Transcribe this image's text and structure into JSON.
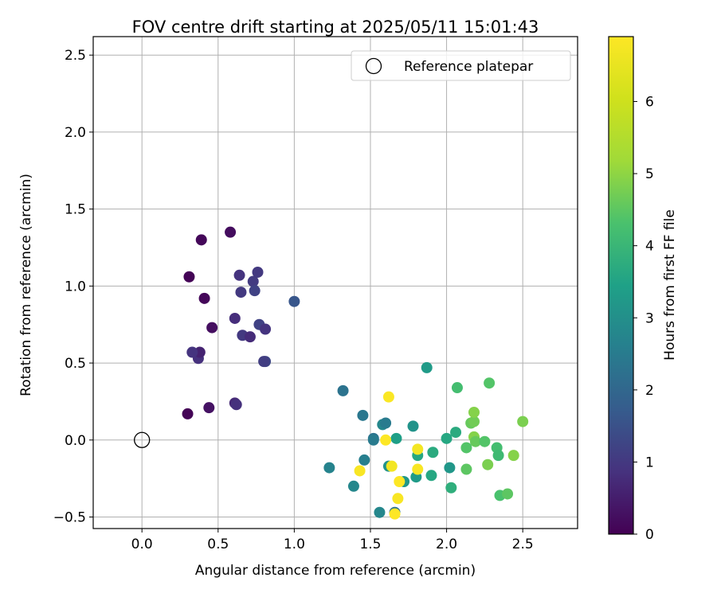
{
  "chart_data": {
    "type": "scatter",
    "title": "FOV centre drift starting at 2025/05/11 15:01:43",
    "xlabel": "Angular distance from reference (arcmin)",
    "ylabel": "Rotation from reference (arcmin)",
    "xlim": [
      -0.32,
      2.86
    ],
    "ylim": [
      -0.575,
      2.62
    ],
    "xticks": [
      0.0,
      0.5,
      1.0,
      1.5,
      2.0,
      2.5
    ],
    "xtick_labels": [
      "0.0",
      "0.5",
      "1.0",
      "1.5",
      "2.0",
      "2.5"
    ],
    "yticks": [
      -0.5,
      0.0,
      0.5,
      1.0,
      1.5,
      2.0,
      2.5
    ],
    "ytick_labels": [
      "−0.5",
      "0.0",
      "0.5",
      "1.0",
      "1.5",
      "2.0",
      "2.5"
    ],
    "grid": true,
    "legend": {
      "position": "top-right",
      "entries": [
        "Reference platepar"
      ]
    },
    "reference_point": {
      "x": 0.0,
      "y": 0.0,
      "label": "Reference platepar"
    },
    "colorbar": {
      "label": "Hours from first FF file",
      "colormap": "viridis",
      "min": 0,
      "max": 6.9,
      "ticks": [
        0,
        1,
        2,
        3,
        4,
        5,
        6
      ],
      "tick_labels": [
        "0",
        "1",
        "2",
        "3",
        "4",
        "5",
        "6"
      ]
    },
    "points": [
      {
        "x": 0.3,
        "y": 0.17,
        "hours": 0.05
      },
      {
        "x": 0.44,
        "y": 0.21,
        "hours": 0.3
      },
      {
        "x": 0.61,
        "y": 0.24,
        "hours": 0.7
      },
      {
        "x": 0.62,
        "y": 0.23,
        "hours": 0.85
      },
      {
        "x": 0.37,
        "y": 0.53,
        "hours": 0.85
      },
      {
        "x": 0.38,
        "y": 0.57,
        "hours": 0.6
      },
      {
        "x": 0.33,
        "y": 0.57,
        "hours": 0.9
      },
      {
        "x": 0.46,
        "y": 0.73,
        "hours": 0.25
      },
      {
        "x": 0.31,
        "y": 1.06,
        "hours": 0.05
      },
      {
        "x": 0.39,
        "y": 1.3,
        "hours": 0.1
      },
      {
        "x": 0.41,
        "y": 0.92,
        "hours": 0.1
      },
      {
        "x": 0.58,
        "y": 1.35,
        "hours": 0.2
      },
      {
        "x": 0.64,
        "y": 1.07,
        "hours": 0.9
      },
      {
        "x": 0.65,
        "y": 0.96,
        "hours": 1.0
      },
      {
        "x": 0.61,
        "y": 0.79,
        "hours": 0.8
      },
      {
        "x": 0.66,
        "y": 0.68,
        "hours": 1.0
      },
      {
        "x": 0.71,
        "y": 0.67,
        "hours": 0.75
      },
      {
        "x": 0.73,
        "y": 1.03,
        "hours": 1.05
      },
      {
        "x": 0.76,
        "y": 1.09,
        "hours": 1.0
      },
      {
        "x": 0.74,
        "y": 0.97,
        "hours": 1.2
      },
      {
        "x": 0.77,
        "y": 0.75,
        "hours": 1.2
      },
      {
        "x": 0.81,
        "y": 0.72,
        "hours": 0.9
      },
      {
        "x": 0.81,
        "y": 0.51,
        "hours": 1.3
      },
      {
        "x": 0.8,
        "y": 0.51,
        "hours": 1.1
      },
      {
        "x": 1.0,
        "y": 0.9,
        "hours": 1.6
      },
      {
        "x": 1.23,
        "y": -0.18,
        "hours": 2.7
      },
      {
        "x": 1.32,
        "y": 0.32,
        "hours": 2.3
      },
      {
        "x": 1.39,
        "y": -0.3,
        "hours": 2.8
      },
      {
        "x": 1.45,
        "y": 0.16,
        "hours": 2.4
      },
      {
        "x": 1.46,
        "y": -0.13,
        "hours": 2.6
      },
      {
        "x": 1.52,
        "y": 0.01,
        "hours": 2.3
      },
      {
        "x": 1.52,
        "y": 0.0,
        "hours": 2.5
      },
      {
        "x": 1.56,
        "y": -0.47,
        "hours": 2.8
      },
      {
        "x": 1.58,
        "y": 0.1,
        "hours": 2.8
      },
      {
        "x": 1.6,
        "y": 0.11,
        "hours": 2.5
      },
      {
        "x": 1.62,
        "y": -0.17,
        "hours": 3.1
      },
      {
        "x": 1.66,
        "y": -0.47,
        "hours": 2.3
      },
      {
        "x": 1.67,
        "y": 0.01,
        "hours": 3.4
      },
      {
        "x": 1.72,
        "y": -0.27,
        "hours": 3.2
      },
      {
        "x": 1.78,
        "y": 0.09,
        "hours": 3.1
      },
      {
        "x": 1.8,
        "y": -0.24,
        "hours": 3.3
      },
      {
        "x": 1.81,
        "y": -0.1,
        "hours": 3.6
      },
      {
        "x": 1.87,
        "y": 0.47,
        "hours": 3.3
      },
      {
        "x": 1.9,
        "y": -0.23,
        "hours": 3.6
      },
      {
        "x": 1.91,
        "y": -0.08,
        "hours": 3.7
      },
      {
        "x": 2.0,
        "y": 0.01,
        "hours": 3.6
      },
      {
        "x": 2.02,
        "y": -0.18,
        "hours": 3.2
      },
      {
        "x": 2.03,
        "y": -0.31,
        "hours": 3.8
      },
      {
        "x": 2.06,
        "y": 0.05,
        "hours": 3.7
      },
      {
        "x": 2.07,
        "y": 0.34,
        "hours": 4.2
      },
      {
        "x": 2.13,
        "y": -0.05,
        "hours": 4.4
      },
      {
        "x": 2.13,
        "y": -0.19,
        "hours": 4.5
      },
      {
        "x": 2.16,
        "y": 0.11,
        "hours": 4.6
      },
      {
        "x": 2.18,
        "y": 0.12,
        "hours": 4.7
      },
      {
        "x": 2.18,
        "y": 0.02,
        "hours": 4.9
      },
      {
        "x": 2.18,
        "y": 0.18,
        "hours": 4.9
      },
      {
        "x": 2.19,
        "y": -0.01,
        "hours": 4.6
      },
      {
        "x": 2.25,
        "y": -0.01,
        "hours": 4.4
      },
      {
        "x": 2.27,
        "y": -0.16,
        "hours": 4.8
      },
      {
        "x": 2.28,
        "y": 0.37,
        "hours": 4.4
      },
      {
        "x": 2.33,
        "y": -0.05,
        "hours": 4.2
      },
      {
        "x": 2.34,
        "y": -0.1,
        "hours": 4.1
      },
      {
        "x": 2.35,
        "y": -0.36,
        "hours": 4.3
      },
      {
        "x": 2.4,
        "y": -0.35,
        "hours": 4.5
      },
      {
        "x": 2.44,
        "y": -0.1,
        "hours": 4.9
      },
      {
        "x": 2.5,
        "y": 0.12,
        "hours": 4.8
      },
      {
        "x": 1.43,
        "y": -0.2,
        "hours": 6.8
      },
      {
        "x": 1.6,
        "y": 0.0,
        "hours": 6.9
      },
      {
        "x": 1.62,
        "y": 0.28,
        "hours": 6.85
      },
      {
        "x": 1.64,
        "y": -0.17,
        "hours": 6.7
      },
      {
        "x": 1.66,
        "y": -0.48,
        "hours": 6.9
      },
      {
        "x": 1.68,
        "y": -0.38,
        "hours": 6.8
      },
      {
        "x": 1.69,
        "y": -0.27,
        "hours": 6.9
      },
      {
        "x": 1.81,
        "y": -0.06,
        "hours": 6.7
      },
      {
        "x": 1.81,
        "y": -0.19,
        "hours": 6.8
      }
    ]
  }
}
